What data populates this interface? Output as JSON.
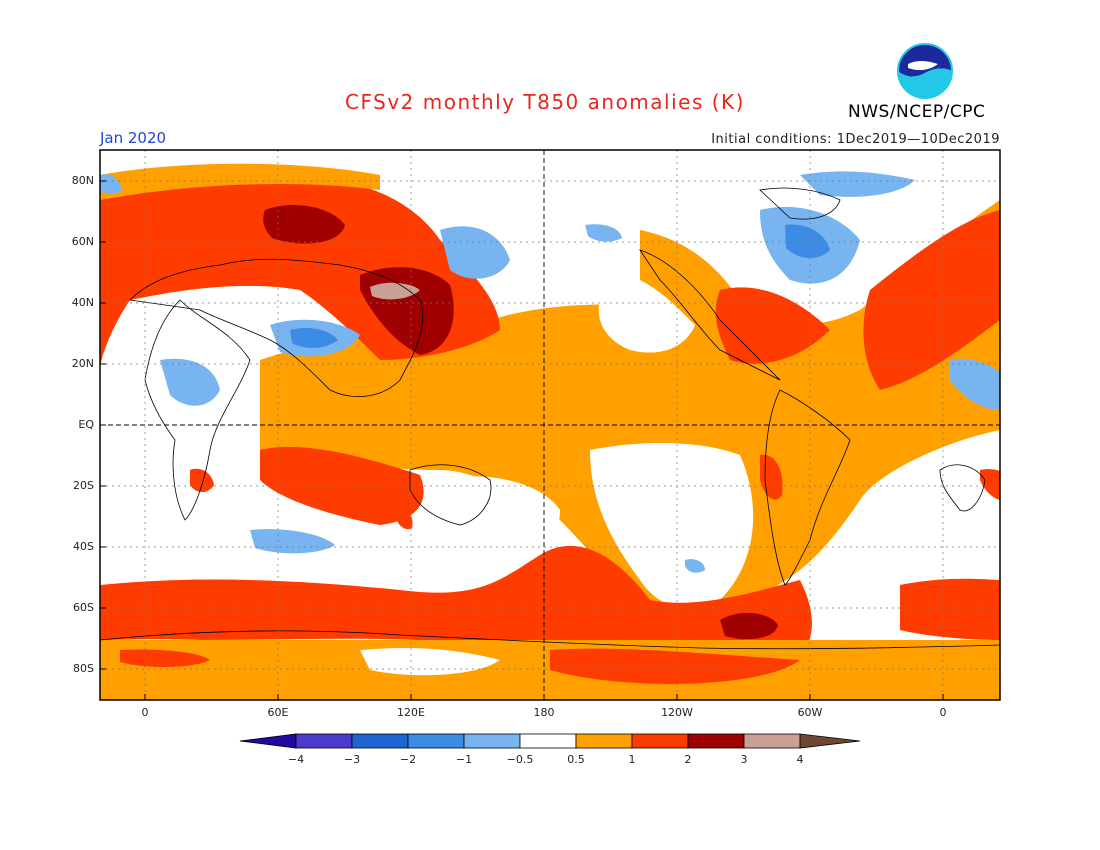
{
  "title": "CFSv2 monthly T850 anomalies (K)",
  "month": "Jan 2020",
  "initial_conditions": "Initial conditions: 1Dec2019—10Dec2019",
  "organization": "NWS/NCEP/CPC",
  "logo_text": "NOAA",
  "lat_labels": [
    "80N",
    "60N",
    "40N",
    "20N",
    "EQ",
    "20S",
    "40S",
    "60S",
    "80S"
  ],
  "lon_labels": [
    "0",
    "60E",
    "120E",
    "180",
    "120W",
    "60W",
    "0"
  ],
  "colorbar": {
    "labels": [
      "−4",
      "−3",
      "−2",
      "−1",
      "−0.5",
      "0.5",
      "1",
      "2",
      "3",
      "4"
    ],
    "colors": [
      "#1e0aa0",
      "#4a3cc8",
      "#1e64d2",
      "#3c8ce6",
      "#78b4f0",
      "#ffffff",
      "#ffa000",
      "#ff3c00",
      "#a00000",
      "#c8a096",
      "#6e4632"
    ]
  }
}
